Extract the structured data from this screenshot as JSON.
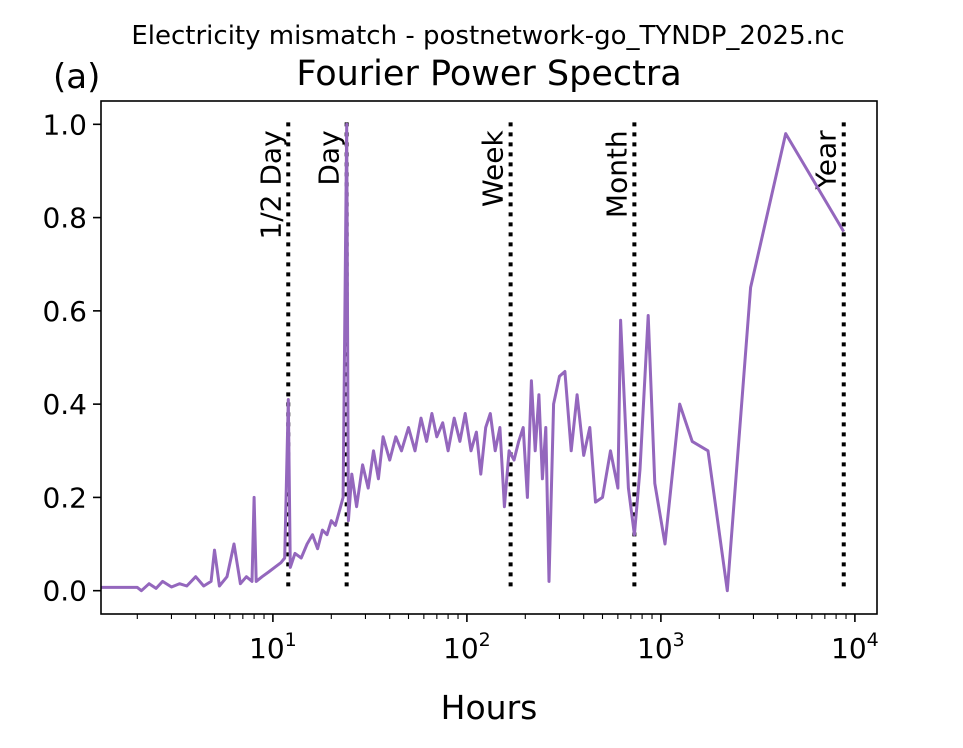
{
  "suptitle": "Electricity mismatch - postnetwork-go_TYNDP_2025.nc",
  "panel_label": "(a)",
  "chart_data": {
    "type": "line",
    "title": "Fourier Power Spectra",
    "xlabel": "Hours",
    "ylabel": "",
    "xscale": "log",
    "xlim": [
      1.3,
      13000
    ],
    "ylim": [
      -0.05,
      1.05
    ],
    "grid": false,
    "line_color": "#9467bd",
    "x_ticks": [
      {
        "base": "10",
        "exp": "1",
        "value": 10
      },
      {
        "base": "10",
        "exp": "2",
        "value": 100
      },
      {
        "base": "10",
        "exp": "3",
        "value": 1000
      },
      {
        "base": "10",
        "exp": "4",
        "value": 10000
      }
    ],
    "y_ticks": [
      "0.0",
      "0.2",
      "0.4",
      "0.6",
      "0.8",
      "1.0"
    ],
    "y_tick_values": [
      0.0,
      0.2,
      0.4,
      0.6,
      0.8,
      1.0
    ],
    "reference_lines": [
      {
        "label": "1/2 Day",
        "x": 12
      },
      {
        "label": "Day",
        "x": 24
      },
      {
        "label": "Week",
        "x": 168
      },
      {
        "label": "Month",
        "x": 730
      },
      {
        "label": "Year",
        "x": 8760
      }
    ],
    "series": [
      {
        "x": [
          1.0,
          2.0,
          2.1,
          2.3,
          2.5,
          2.7,
          3.0,
          3.3,
          3.6,
          4.0,
          4.4,
          4.8,
          5.0,
          5.3,
          5.8,
          6.3,
          6.8,
          7.3,
          7.8,
          8.0,
          8.2,
          8.8,
          9.5,
          10.2,
          11.0,
          11.5,
          12.0,
          12.3,
          13.0,
          14.0,
          15.0,
          16.0,
          17.0,
          18.0,
          19.0,
          20.0,
          21.0,
          22.0,
          23.0,
          24.0,
          24.5,
          25.5,
          27.0,
          29.0,
          31.0,
          33.0,
          35.0,
          37.0,
          40.0,
          43.0,
          46.0,
          50.0,
          54.0,
          58.0,
          62.0,
          66.0,
          70.0,
          75.0,
          80.0,
          86.0,
          92.0,
          98.0,
          105.0,
          112.0,
          118.0,
          125.0,
          132.0,
          140.0,
          148.0,
          156.0,
          165.0,
          175.0,
          185.0,
          195.0,
          205.0,
          215.0,
          225.0,
          235.0,
          245.0,
          255.0,
          265.0,
          280.0,
          300.0,
          320.0,
          345.0,
          370.0,
          400.0,
          430.0,
          460.0,
          500.0,
          550.0,
          600.0,
          620.0,
          680.0,
          730.0,
          780.0,
          860.0,
          930.0,
          1050.0,
          1250.0,
          1450.0,
          1750.0,
          2200.0,
          2900.0,
          4400.0,
          8760.0
        ],
        "y": [
          0.007,
          0.007,
          0.0,
          0.015,
          0.005,
          0.02,
          0.008,
          0.015,
          0.01,
          0.03,
          0.01,
          0.02,
          0.087,
          0.01,
          0.03,
          0.1,
          0.015,
          0.03,
          0.02,
          0.2,
          0.02,
          0.03,
          0.04,
          0.05,
          0.06,
          0.07,
          0.41,
          0.05,
          0.08,
          0.07,
          0.1,
          0.12,
          0.09,
          0.13,
          0.12,
          0.15,
          0.14,
          0.17,
          0.2,
          1.0,
          0.15,
          0.25,
          0.18,
          0.27,
          0.22,
          0.3,
          0.24,
          0.33,
          0.28,
          0.33,
          0.3,
          0.35,
          0.3,
          0.37,
          0.32,
          0.38,
          0.33,
          0.36,
          0.3,
          0.37,
          0.32,
          0.38,
          0.3,
          0.34,
          0.25,
          0.35,
          0.38,
          0.3,
          0.35,
          0.18,
          0.3,
          0.28,
          0.32,
          0.35,
          0.2,
          0.45,
          0.3,
          0.42,
          0.24,
          0.35,
          0.02,
          0.4,
          0.46,
          0.47,
          0.3,
          0.42,
          0.29,
          0.35,
          0.19,
          0.2,
          0.3,
          0.22,
          0.58,
          0.22,
          0.12,
          0.26,
          0.59,
          0.23,
          0.1,
          0.4,
          0.32,
          0.3,
          0.0,
          0.65,
          0.98,
          0.77
        ]
      }
    ]
  }
}
